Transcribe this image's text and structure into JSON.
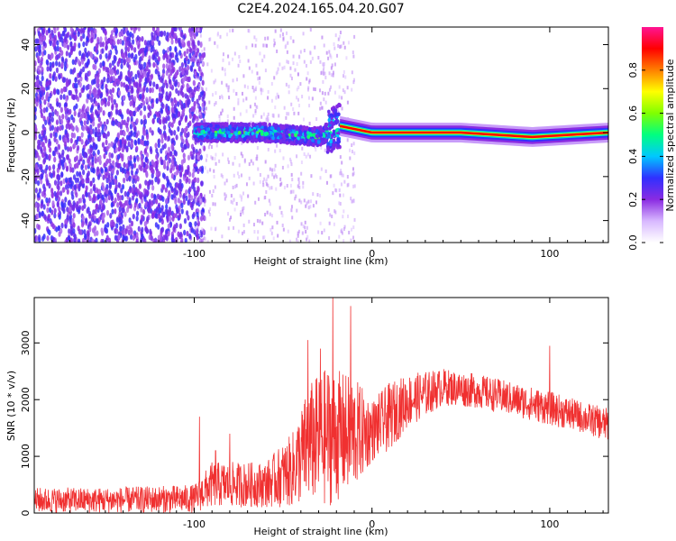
{
  "title": "C2E4.2024.165.04.20.G07",
  "chart_data": [
    {
      "type": "heatmap",
      "xlabel": "Height of straight line (km)",
      "ylabel": "Frequency (Hz)",
      "xlim": [
        -190,
        133
      ],
      "ylim": [
        -50,
        48
      ],
      "xticks": [
        -100,
        0,
        100
      ],
      "yticks": [
        40,
        20,
        0,
        -20,
        -40
      ],
      "xtick_labels": [
        "-100",
        "0",
        "100"
      ],
      "ytick_labels": [
        "40",
        "20",
        "0",
        "-20",
        "-40"
      ],
      "description_regions": [
        {
          "x_range": [
            -190,
            -100
          ],
          "pattern": "broadband noise",
          "amplitude": [
            0.15,
            0.3
          ]
        },
        {
          "x_range": [
            -100,
            -18
          ],
          "pattern": "band around 0 Hz, width ~8 Hz",
          "amplitude": [
            0.2,
            0.55
          ]
        },
        {
          "x_range": [
            -18,
            133
          ],
          "pattern": "narrow line at 0 Hz",
          "amplitude": [
            0.7,
            1.0
          ]
        }
      ],
      "ridge": [
        {
          "x": -100,
          "y": 0
        },
        {
          "x": -60,
          "y": 0
        },
        {
          "x": -30,
          "y": -2
        },
        {
          "x": -18,
          "y": 3
        },
        {
          "x": 0,
          "y": 0
        },
        {
          "x": 50,
          "y": 0
        },
        {
          "x": 90,
          "y": -2
        },
        {
          "x": 133,
          "y": 0
        }
      ],
      "colorbar": {
        "label": "Normalized spectral amplitude",
        "range": [
          0,
          1
        ],
        "ticks": [
          0.0,
          0.2,
          0.4,
          0.6,
          0.8
        ],
        "tick_labels": [
          "0.0",
          "0.2",
          "0.4",
          "0.6",
          "0.8"
        ],
        "colors": [
          "#ffffff",
          "#d8b8ff",
          "#8a2be2",
          "#3030ff",
          "#00c8ff",
          "#00ff80",
          "#80ff00",
          "#ffff00",
          "#ff8000",
          "#ff0000",
          "#ff1493"
        ]
      }
    },
    {
      "type": "line",
      "xlabel": "Height of straight line (km)",
      "ylabel": "SNR (10 * v/v)",
      "xlim": [
        -190,
        133
      ],
      "ylim": [
        0,
        3800
      ],
      "xticks": [
        -100,
        0,
        100
      ],
      "yticks": [
        0,
        1000,
        2000,
        3000
      ],
      "xtick_labels": [
        "-100",
        "0",
        "100"
      ],
      "ytick_labels": [
        "0",
        "1000",
        "2000",
        "3000"
      ],
      "color": "#f03030",
      "envelope": [
        {
          "x": -190,
          "lo": 0,
          "hi": 450
        },
        {
          "x": -150,
          "lo": 0,
          "hi": 450
        },
        {
          "x": -100,
          "lo": 0,
          "hi": 500
        },
        {
          "x": -90,
          "lo": 100,
          "hi": 900
        },
        {
          "x": -60,
          "lo": 100,
          "hi": 900
        },
        {
          "x": -45,
          "lo": 100,
          "hi": 1400
        },
        {
          "x": -35,
          "lo": 200,
          "hi": 2300
        },
        {
          "x": -25,
          "lo": 100,
          "hi": 2600
        },
        {
          "x": -10,
          "lo": 400,
          "hi": 2400
        },
        {
          "x": 0,
          "lo": 900,
          "hi": 2000
        },
        {
          "x": 10,
          "lo": 1100,
          "hi": 2300
        },
        {
          "x": 20,
          "lo": 1500,
          "hi": 2450
        },
        {
          "x": 40,
          "lo": 1900,
          "hi": 2550
        },
        {
          "x": 60,
          "lo": 1850,
          "hi": 2450
        },
        {
          "x": 80,
          "lo": 1700,
          "hi": 2300
        },
        {
          "x": 100,
          "lo": 1550,
          "hi": 2150
        },
        {
          "x": 120,
          "lo": 1400,
          "hi": 1950
        },
        {
          "x": 133,
          "lo": 1250,
          "hi": 1850
        }
      ],
      "spikes": [
        {
          "x": -97,
          "y": 1700
        },
        {
          "x": -88,
          "y": 1100
        },
        {
          "x": -80,
          "y": 1400
        },
        {
          "x": -36,
          "y": 3050
        },
        {
          "x": -29,
          "y": 2900
        },
        {
          "x": -22,
          "y": 3800
        },
        {
          "x": -12,
          "y": 3650
        },
        {
          "x": 100,
          "y": 2950
        }
      ]
    }
  ]
}
